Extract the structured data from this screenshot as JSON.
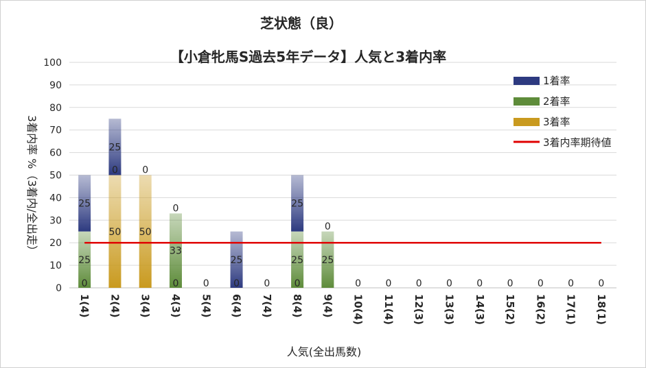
{
  "chart_data": {
    "type": "bar",
    "stacked": true,
    "title": "芝状態（良）",
    "subtitle": "【小倉牝馬S過去5年データ】人気と3着内率",
    "xlabel": "人気(全出馬数)",
    "ylabel": "3着内率 %（3着内/全出走）",
    "ylim": [
      0,
      100
    ],
    "yticks": [
      0,
      10,
      20,
      30,
      40,
      50,
      60,
      70,
      80,
      90,
      100
    ],
    "grid": true,
    "legend_position": "top-right",
    "categories": [
      "1(4)",
      "2(4)",
      "3(4)",
      "4(3)",
      "5(4)",
      "6(4)",
      "7(4)",
      "8(4)",
      "9(4)",
      "10(4)",
      "11(4)",
      "12(3)",
      "13(3)",
      "14(3)",
      "15(2)",
      "16(2)",
      "17(1)",
      "18(1)"
    ],
    "series": [
      {
        "name": "3着率",
        "color": "#c99a1f",
        "values": [
          0,
          50,
          50,
          0,
          0,
          0,
          0,
          0,
          0,
          0,
          0,
          0,
          0,
          0,
          0,
          0,
          0,
          0
        ]
      },
      {
        "name": "2着率",
        "color": "#5e8c3a",
        "values": [
          25,
          0,
          0,
          33,
          0,
          0,
          0,
          25,
          25,
          0,
          0,
          0,
          0,
          0,
          0,
          0,
          0,
          0
        ]
      },
      {
        "name": "1着率",
        "color": "#2d3a80",
        "values": [
          25,
          25,
          0,
          0,
          0,
          25,
          0,
          25,
          0,
          0,
          0,
          0,
          0,
          0,
          0,
          0,
          0,
          0
        ]
      }
    ],
    "reference_line": {
      "name": "3着内率期待値",
      "value": 20,
      "color": "#e00000"
    },
    "data_labels": [
      {
        "category": "1(4)",
        "labels": [
          "0",
          "25",
          "25"
        ]
      },
      {
        "category": "2(4)",
        "labels": [
          "50",
          "0",
          "25"
        ]
      },
      {
        "category": "3(4)",
        "labels": [
          "50",
          "0"
        ]
      },
      {
        "category": "4(3)",
        "labels": [
          "0",
          "33",
          "0"
        ]
      },
      {
        "category": "5(4)",
        "labels": [
          "0"
        ]
      },
      {
        "category": "6(4)",
        "labels": [
          "0",
          "25"
        ]
      },
      {
        "category": "7(4)",
        "labels": [
          "0"
        ]
      },
      {
        "category": "8(4)",
        "labels": [
          "0",
          "25",
          "25"
        ]
      },
      {
        "category": "9(4)",
        "labels": [
          "25",
          "0"
        ]
      },
      {
        "category": "10(4)",
        "labels": [
          "0"
        ]
      },
      {
        "category": "11(4)",
        "labels": [
          "0"
        ]
      },
      {
        "category": "12(3)",
        "labels": [
          "0"
        ]
      },
      {
        "category": "13(3)",
        "labels": [
          "0"
        ]
      },
      {
        "category": "14(3)",
        "labels": [
          "0"
        ]
      },
      {
        "category": "15(2)",
        "labels": [
          "0"
        ]
      },
      {
        "category": "16(2)",
        "labels": [
          "0"
        ]
      },
      {
        "category": "17(1)",
        "labels": [
          "0"
        ]
      },
      {
        "category": "18(1)",
        "labels": [
          "0"
        ]
      }
    ],
    "legend": [
      "1着率",
      "2着率",
      "3着率",
      "3着内率期待値"
    ]
  }
}
